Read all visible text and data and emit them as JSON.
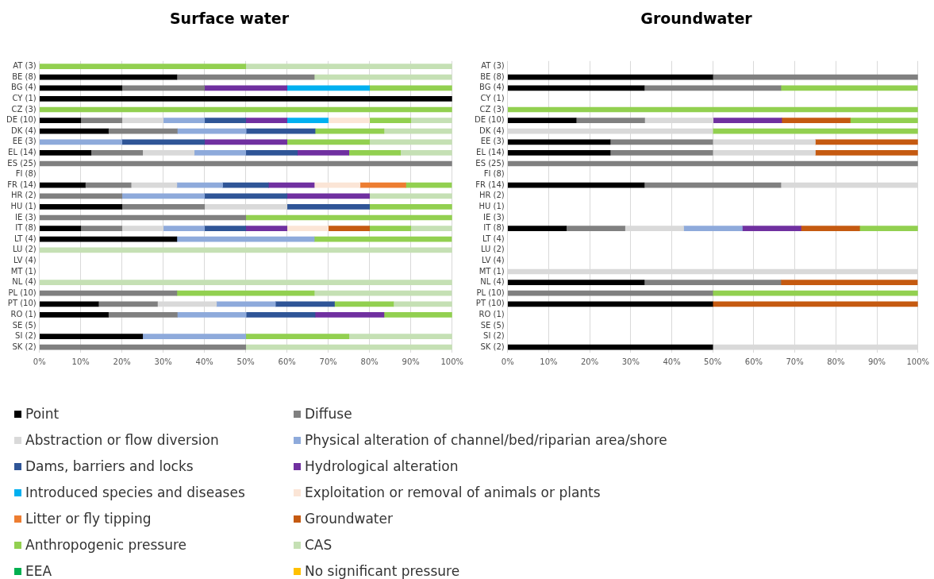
{
  "chart_data": [
    {
      "type": "bar",
      "orientation": "horizontal",
      "stacked": true,
      "title": "Surface water",
      "grid": "x",
      "legend": "bottom",
      "categories": [
        "AT (3)",
        "BE (8)",
        "BG (4)",
        "CY (1)",
        "CZ (3)",
        "DE (10)",
        "DK (4)",
        "EE (3)",
        "EL (14)",
        "ES (25)",
        "FI (8)",
        "FR (14)",
        "HR (2)",
        "HU (1)",
        "IE (3)",
        "IT (8)",
        "LT (4)",
        "LU (2)",
        "LV (4)",
        "MT (1)",
        "NL (4)",
        "PL (10)",
        "PT (10)",
        "RO (1)",
        "SE (5)",
        "SI (2)",
        "SK (2)"
      ],
      "xlim": [
        0,
        100
      ],
      "xticks": [
        {
          "value": 0,
          "label": "0%"
        },
        {
          "value": 10,
          "label": "10%"
        },
        {
          "value": 20,
          "label": "20%"
        },
        {
          "value": 30,
          "label": "30%"
        },
        {
          "value": 40,
          "label": "40%"
        },
        {
          "value": 50,
          "label": "50%"
        },
        {
          "value": 60,
          "label": "60%"
        },
        {
          "value": 70,
          "label": "70%"
        },
        {
          "value": 80,
          "label": "80%"
        },
        {
          "value": 90,
          "label": "90%"
        },
        {
          "value": 100,
          "label": "100%"
        }
      ],
      "series": [
        {
          "name": "Point",
          "color": "#000000",
          "values": [
            null,
            33.3,
            20,
            100,
            null,
            10,
            16.7,
            null,
            12.5,
            null,
            null,
            11.1,
            null,
            20,
            null,
            10,
            33.3,
            null,
            null,
            null,
            null,
            null,
            14.3,
            16.7,
            null,
            25,
            null
          ]
        },
        {
          "name": "Diffuse",
          "color": "#808080",
          "values": [
            null,
            33.3,
            20,
            null,
            null,
            10,
            16.7,
            null,
            12.5,
            100,
            null,
            11.1,
            20,
            20,
            50,
            10,
            null,
            null,
            null,
            null,
            null,
            33.3,
            14.3,
            16.7,
            null,
            null,
            50
          ]
        },
        {
          "name": "Abstraction or flow diversion",
          "color": "#d9d9d9",
          "values": [
            null,
            null,
            null,
            null,
            null,
            10,
            null,
            null,
            12.5,
            null,
            null,
            11.1,
            null,
            20,
            null,
            10,
            null,
            null,
            null,
            null,
            null,
            null,
            14.3,
            null,
            null,
            null,
            null
          ]
        },
        {
          "name": "Physical alteration of channel/bed/riparian area/shore",
          "color": "#8eaadb",
          "values": [
            null,
            null,
            null,
            null,
            null,
            10,
            16.7,
            20,
            12.5,
            null,
            null,
            11.1,
            20,
            null,
            null,
            10,
            33.3,
            null,
            null,
            null,
            null,
            null,
            14.3,
            16.7,
            null,
            25,
            null
          ]
        },
        {
          "name": "Dams, barriers and locks",
          "color": "#2f5597",
          "values": [
            null,
            null,
            null,
            null,
            null,
            10,
            16.7,
            20,
            12.5,
            null,
            null,
            11.1,
            20,
            20,
            null,
            10,
            null,
            null,
            null,
            null,
            null,
            null,
            14.3,
            16.7,
            null,
            null,
            null
          ]
        },
        {
          "name": "Hydrological alteration",
          "color": "#7030a0",
          "values": [
            null,
            null,
            20,
            null,
            null,
            10,
            null,
            20,
            12.5,
            null,
            null,
            11.1,
            20,
            null,
            null,
            10,
            null,
            null,
            null,
            null,
            null,
            null,
            null,
            16.7,
            null,
            null,
            null
          ]
        },
        {
          "name": "Introduced species and diseases",
          "color": "#00b0f0",
          "values": [
            null,
            null,
            20,
            null,
            null,
            10,
            null,
            null,
            null,
            null,
            null,
            null,
            null,
            null,
            null,
            null,
            null,
            null,
            null,
            null,
            null,
            null,
            null,
            null,
            null,
            null,
            null
          ]
        },
        {
          "name": "Exploitation or removal of animals or plants",
          "color": "#fbe5d6",
          "values": [
            null,
            null,
            null,
            null,
            null,
            10,
            null,
            null,
            null,
            null,
            null,
            11.1,
            null,
            null,
            null,
            10,
            null,
            null,
            null,
            null,
            null,
            null,
            null,
            null,
            null,
            null,
            null
          ]
        },
        {
          "name": "Litter or fly tipping",
          "color": "#ed7d31",
          "values": [
            null,
            null,
            null,
            null,
            null,
            null,
            null,
            null,
            null,
            null,
            null,
            11.1,
            null,
            null,
            null,
            null,
            null,
            null,
            null,
            null,
            null,
            null,
            null,
            null,
            null,
            null,
            null
          ]
        },
        {
          "name": "Groundwater",
          "color": "#c55a11",
          "values": [
            null,
            null,
            null,
            null,
            null,
            null,
            null,
            null,
            null,
            null,
            null,
            null,
            null,
            null,
            null,
            10,
            null,
            null,
            null,
            null,
            null,
            null,
            null,
            null,
            null,
            null,
            null
          ]
        },
        {
          "name": "Anthropogenic pressure",
          "color": "#92d050",
          "values": [
            50,
            null,
            20,
            null,
            100,
            10,
            16.7,
            20,
            12.5,
            null,
            null,
            11.1,
            null,
            20,
            50,
            10,
            33.3,
            null,
            null,
            null,
            null,
            33.3,
            14.3,
            16.5,
            null,
            25,
            null
          ]
        },
        {
          "name": "CAS",
          "color": "#c5e0b4",
          "values": [
            50,
            33.3,
            null,
            null,
            null,
            10,
            16.5,
            20,
            12.5,
            null,
            null,
            null,
            20,
            null,
            null,
            10,
            null,
            100,
            null,
            null,
            100,
            33.3,
            14.2,
            null,
            null,
            25,
            50
          ]
        },
        {
          "name": "EEA",
          "color": "#00b050",
          "values": [
            null,
            null,
            null,
            null,
            null,
            null,
            null,
            null,
            null,
            null,
            null,
            null,
            null,
            null,
            null,
            null,
            null,
            null,
            null,
            null,
            null,
            null,
            null,
            null,
            null,
            null,
            null
          ]
        },
        {
          "name": "No significant pressure",
          "color": "#ffc000",
          "values": [
            null,
            null,
            null,
            null,
            null,
            null,
            null,
            null,
            null,
            null,
            null,
            null,
            null,
            null,
            null,
            null,
            null,
            null,
            null,
            null,
            null,
            null,
            null,
            null,
            null,
            null,
            null
          ]
        }
      ]
    },
    {
      "type": "bar",
      "orientation": "horizontal",
      "stacked": true,
      "title": "Groundwater",
      "grid": "x",
      "categories": [
        "AT (3)",
        "BE (8)",
        "BG (4)",
        "CY (1)",
        "CZ (3)",
        "DE (10)",
        "DK (4)",
        "EE (3)",
        "EL (14)",
        "ES (25)",
        "FI (8)",
        "FR (14)",
        "HR (2)",
        "HU (1)",
        "IE (3)",
        "IT (8)",
        "LT (4)",
        "LU (2)",
        "LV (4)",
        "MT (1)",
        "NL (4)",
        "PL (10)",
        "PT (10)",
        "RO (1)",
        "SE (5)",
        "SI (2)",
        "SK (2)"
      ],
      "xlim": [
        0,
        100
      ],
      "xticks": [
        {
          "value": 0,
          "label": "0%"
        },
        {
          "value": 10,
          "label": "10%"
        },
        {
          "value": 20,
          "label": "20%"
        },
        {
          "value": 30,
          "label": "30%"
        },
        {
          "value": 40,
          "label": "40%"
        },
        {
          "value": 50,
          "label": "50%"
        },
        {
          "value": 60,
          "label": "60%"
        },
        {
          "value": 70,
          "label": "70%"
        },
        {
          "value": 80,
          "label": "80%"
        },
        {
          "value": 90,
          "label": "90%"
        },
        {
          "value": 100,
          "label": "100%"
        }
      ],
      "series": [
        {
          "color": "#000000",
          "values": [
            null,
            50,
            33.3,
            null,
            null,
            16.7,
            null,
            25,
            25,
            null,
            null,
            33.3,
            null,
            null,
            null,
            14.3,
            null,
            null,
            null,
            null,
            33.3,
            null,
            50,
            null,
            null,
            null,
            50
          ]
        },
        {
          "color": "#808080",
          "values": [
            null,
            50,
            33.3,
            null,
            null,
            16.7,
            null,
            25,
            25,
            100,
            null,
            33.3,
            null,
            null,
            null,
            14.3,
            null,
            null,
            null,
            null,
            33.3,
            50,
            null,
            null,
            null,
            null,
            null
          ]
        },
        {
          "color": "#d9d9d9",
          "values": [
            null,
            null,
            null,
            null,
            null,
            16.7,
            50,
            25,
            25,
            null,
            null,
            33.3,
            null,
            null,
            null,
            14.3,
            null,
            null,
            null,
            100,
            null,
            null,
            null,
            null,
            null,
            null,
            50
          ]
        },
        {
          "color": "#8eaadb",
          "values": [
            null,
            null,
            null,
            null,
            null,
            null,
            null,
            null,
            null,
            null,
            null,
            null,
            null,
            null,
            null,
            14.3,
            null,
            null,
            null,
            null,
            null,
            null,
            null,
            null,
            null,
            null,
            null
          ]
        },
        {
          "color": "#7030a0",
          "values": [
            null,
            null,
            null,
            null,
            null,
            16.7,
            null,
            null,
            null,
            null,
            null,
            null,
            null,
            null,
            null,
            14.3,
            null,
            null,
            null,
            null,
            null,
            null,
            null,
            null,
            null,
            null,
            null
          ]
        },
        {
          "color": "#c55a11",
          "values": [
            null,
            null,
            null,
            null,
            null,
            16.7,
            null,
            25,
            25,
            null,
            null,
            null,
            null,
            null,
            null,
            14.3,
            null,
            null,
            null,
            null,
            33.3,
            null,
            50,
            null,
            null,
            null,
            null
          ]
        },
        {
          "color": "#92d050",
          "values": [
            null,
            null,
            33.3,
            null,
            100,
            16.5,
            50,
            null,
            null,
            null,
            null,
            null,
            null,
            null,
            null,
            14.2,
            null,
            null,
            null,
            null,
            null,
            50,
            null,
            null,
            null,
            null,
            null
          ]
        }
      ]
    }
  ]
}
